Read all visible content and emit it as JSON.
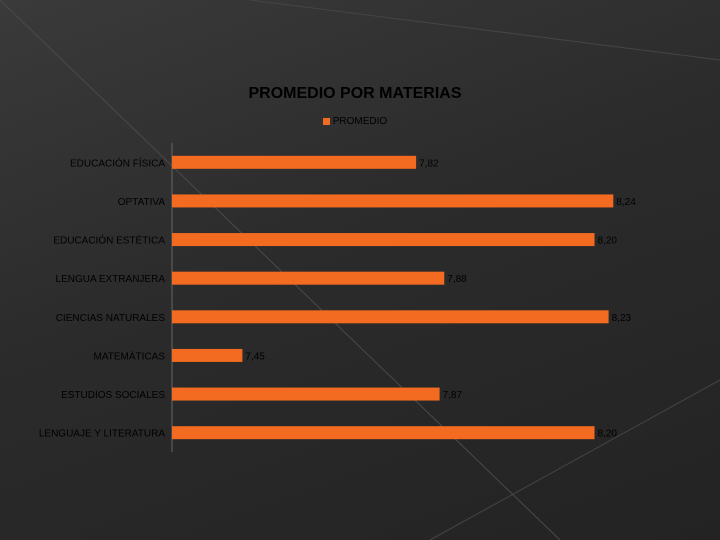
{
  "chart_data": {
    "type": "bar",
    "orientation": "horizontal",
    "title": "PROMEDIO POR MATERIAS",
    "categories": [
      "EDUCACIÓN FÍSICA",
      "OPTATIVA",
      "EDUCACIÓN ESTÉTICA",
      "LENGUA EXTRANJERA",
      "CIENCIAS NATURALES",
      "MATEMÁTICAS",
      "ESTUDIOS SOCIALES",
      "LENGUAJE Y LITERATURA"
    ],
    "series": [
      {
        "name": "PROMEDIO",
        "values": [
          7.82,
          8.24,
          8.2,
          7.88,
          8.23,
          7.45,
          7.87,
          8.2
        ],
        "labels": [
          "7,82",
          "8,24",
          "8,20",
          "7,88",
          "8,23",
          "7,45",
          "7,87",
          "8,20"
        ]
      }
    ],
    "xlim": [
      7.3,
      8.25
    ],
    "grid": false,
    "legend_position": "top",
    "bar_color": "#f26b21"
  }
}
